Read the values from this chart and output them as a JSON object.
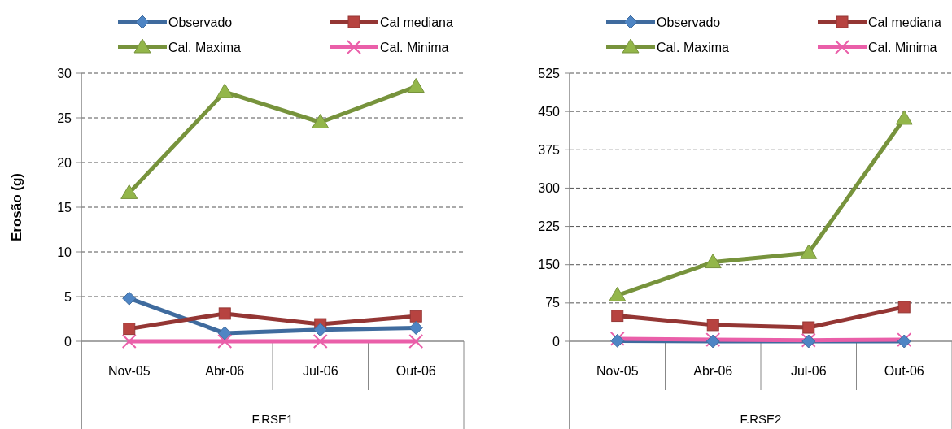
{
  "chart_data": [
    {
      "type": "line",
      "ylabel": "Erosão  (g)",
      "xlabel": "F.RSE1",
      "categories": [
        "Nov-05",
        "Abr-06",
        "Jul-06",
        "Out-06"
      ],
      "ylim": [
        0,
        30
      ],
      "yticks": [
        0,
        5,
        10,
        15,
        20,
        25,
        30
      ],
      "grid": "y",
      "legend": "top",
      "series": [
        {
          "name": "Observado",
          "color": "#3f6b9e",
          "marker": "diamond",
          "values": [
            4.8,
            0.9,
            1.3,
            1.5
          ]
        },
        {
          "name": "Cal mediana",
          "color": "#943634",
          "marker": "square",
          "values": [
            1.4,
            3.1,
            1.9,
            2.8
          ]
        },
        {
          "name": "Cal. Maxima",
          "color": "#77933c",
          "marker": "triangle",
          "values": [
            16.6,
            27.9,
            24.5,
            28.5
          ]
        },
        {
          "name": "Cal. Minima",
          "color": "#ea5fa9",
          "marker": "cross",
          "values": [
            0,
            0,
            0,
            0
          ]
        }
      ]
    },
    {
      "type": "line",
      "xlabel": "F.RSE2",
      "categories": [
        "Nov-05",
        "Abr-06",
        "Jul-06",
        "Out-06"
      ],
      "ylim": [
        0,
        525
      ],
      "yticks": [
        0,
        75,
        150,
        225,
        300,
        375,
        450,
        525
      ],
      "grid": "y",
      "legend": "top",
      "series": [
        {
          "name": "Observado",
          "color": "#3f6b9e",
          "marker": "diamond",
          "values": [
            1,
            0,
            0,
            0
          ]
        },
        {
          "name": "Cal mediana",
          "color": "#943634",
          "marker": "square",
          "values": [
            50,
            32,
            27,
            67
          ]
        },
        {
          "name": "Cal. Maxima",
          "color": "#77933c",
          "marker": "triangle",
          "values": [
            90,
            155,
            173,
            436
          ]
        },
        {
          "name": "Cal. Minima",
          "color": "#ea5fa9",
          "marker": "cross",
          "values": [
            5,
            3,
            2,
            3
          ]
        }
      ]
    }
  ]
}
